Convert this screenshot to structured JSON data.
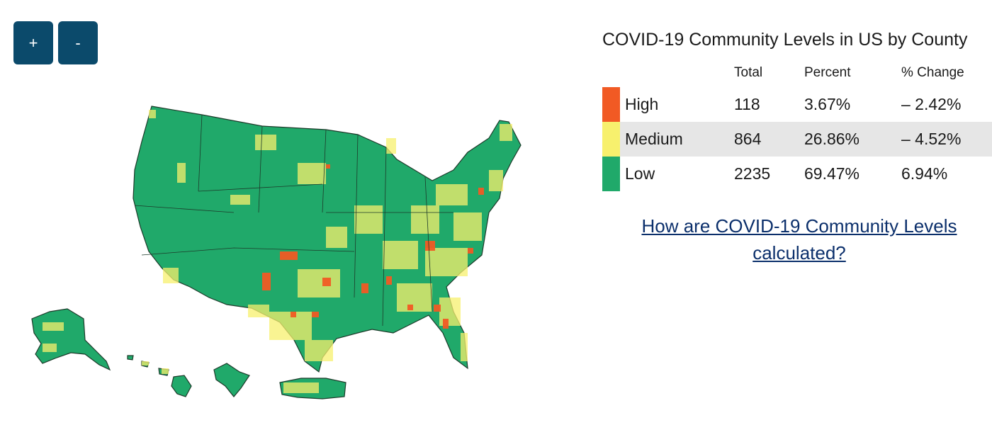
{
  "controls": {
    "zoom_in": "+",
    "zoom_out": "-"
  },
  "legend": {
    "title": "COVID-19 Community Levels in US by County",
    "headers": {
      "total": "Total",
      "percent": "Percent",
      "change": "% Change"
    },
    "rows": [
      {
        "level": "High",
        "total": "118",
        "percent": "3.67%",
        "change": "– 2.42%",
        "color": "#f15a24"
      },
      {
        "level": "Medium",
        "total": "864",
        "percent": "26.86%",
        "change": "– 4.52%",
        "color": "#f7f06d"
      },
      {
        "level": "Low",
        "total": "2235",
        "percent": "69.47%",
        "change": "6.94%",
        "color": "#20a96a"
      }
    ]
  },
  "link": {
    "text": "How are COVID-19 Community Levels calculated?"
  },
  "map": {
    "colors": {
      "low": "#20a96a",
      "medium": "#f7f06d",
      "high": "#f15a24",
      "border": "#1d3a2a"
    }
  }
}
